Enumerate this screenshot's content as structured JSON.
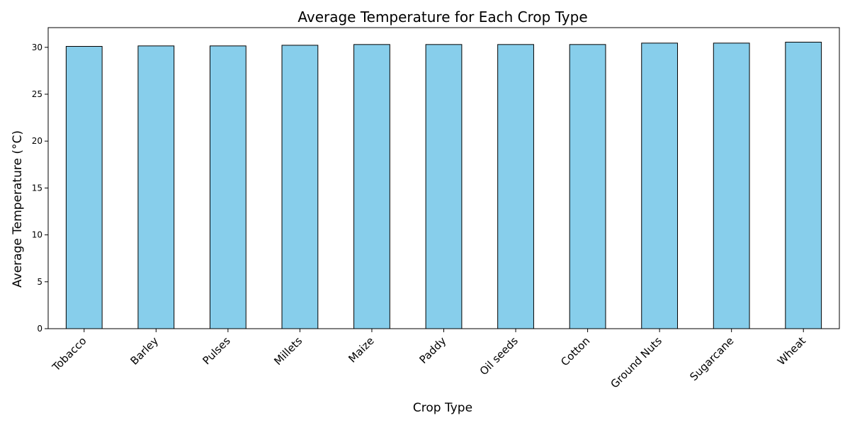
{
  "chart_data": {
    "type": "bar",
    "title": "Average Temperature for Each Crop Type",
    "xlabel": "Crop Type",
    "ylabel": "Average Temperature (°C)",
    "categories": [
      "Tobacco",
      "Barley",
      "Pulses",
      "Millets",
      "Maize",
      "Paddy",
      "Oil seeds",
      "Cotton",
      "Ground Nuts",
      "Sugarcane",
      "Wheat"
    ],
    "values": [
      30.1,
      30.15,
      30.15,
      30.22,
      30.3,
      30.3,
      30.3,
      30.3,
      30.45,
      30.45,
      30.55
    ],
    "ylim": [
      0,
      32.1
    ],
    "yticks": [
      0,
      5,
      10,
      15,
      20,
      25,
      30
    ],
    "bar_color": "#87CEEB",
    "edge_color": "#000000"
  }
}
